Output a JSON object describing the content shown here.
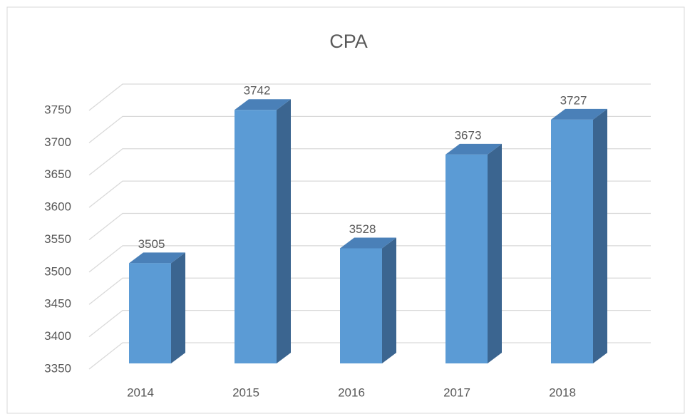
{
  "chart_data": {
    "type": "bar3d",
    "title": "CPA",
    "categories": [
      "2014",
      "2015",
      "2016",
      "2017",
      "2018"
    ],
    "values": [
      3505,
      3742,
      3528,
      3673,
      3727
    ],
    "color": "#5b9bd5",
    "top_color": "#4a80b8",
    "side_color": "#3b6590",
    "ylim": [
      3350,
      3750
    ],
    "yticks": [
      3350,
      3400,
      3450,
      3500,
      3550,
      3600,
      3650,
      3700,
      3750
    ],
    "grid": true
  }
}
